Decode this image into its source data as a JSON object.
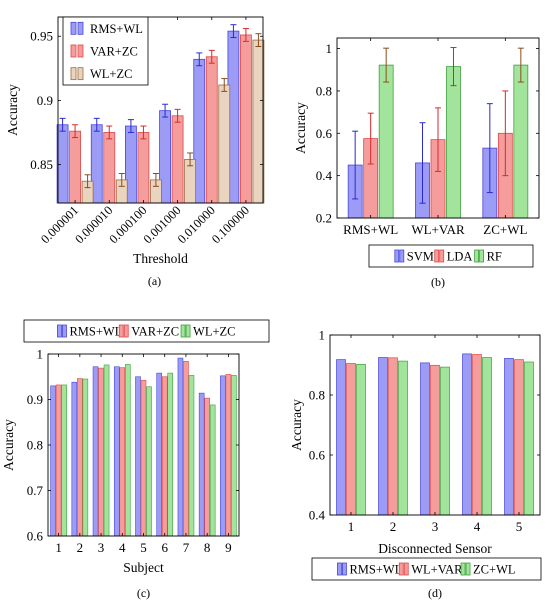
{
  "colors": {
    "blue_fill": "#9c9cf6",
    "blue_edge": "#4747d8",
    "red_fill": "#f59d9d",
    "red_edge": "#e04848",
    "green_fill": "#a3e49c",
    "green_edge": "#3f9f3f",
    "tan_fill": "#e8d4bf",
    "tan_edge": "#a06a3f",
    "error_blue": "#2a2ad6",
    "error_red": "#d62a2a",
    "error_brown": "#8c4d1e",
    "error_tan": "#8c4d1e"
  },
  "chart_data": [
    {
      "type": "bar",
      "panel_label": "(a)",
      "xlabel": "Threshold",
      "ylabel": "Accuracy",
      "ylim": [
        0.82,
        0.965
      ],
      "yticks": [
        0.85,
        0.9,
        0.95
      ],
      "ytick_labels": [
        "0.85",
        "0.9",
        "0.95"
      ],
      "categories": [
        "0.000001",
        "0.000010",
        "0.000100",
        "0.001000",
        "0.010000",
        "0.100000"
      ],
      "legend_position": "top-left",
      "series": [
        {
          "name": "RMS+WL",
          "color": "blue",
          "values": [
            0.881,
            0.881,
            0.88,
            0.892,
            0.932,
            0.954
          ],
          "errors": [
            0.005,
            0.005,
            0.005,
            0.005,
            0.005,
            0.005
          ]
        },
        {
          "name": "VAR+ZC",
          "color": "red",
          "values": [
            0.876,
            0.875,
            0.875,
            0.888,
            0.934,
            0.951
          ],
          "errors": [
            0.005,
            0.005,
            0.005,
            0.005,
            0.005,
            0.005
          ]
        },
        {
          "name": "WL+ZC",
          "color": "tan",
          "values": [
            0.837,
            0.838,
            0.838,
            0.854,
            0.912,
            0.947
          ],
          "errors": [
            0.005,
            0.005,
            0.005,
            0.005,
            0.005,
            0.005
          ]
        }
      ]
    },
    {
      "type": "bar",
      "panel_label": "(b)",
      "xlabel": "",
      "ylabel": "Accuracy",
      "ylim": [
        0.2,
        1.05
      ],
      "yticks": [
        0.2,
        0.4,
        0.6,
        0.8,
        1.0
      ],
      "ytick_labels": [
        "0.2",
        "0.4",
        "0.6",
        "0.8",
        "1"
      ],
      "categories": [
        "RMS+WL",
        "WL+VAR",
        "ZC+WL"
      ],
      "legend_position": "bottom-outside",
      "series": [
        {
          "name": "SVM",
          "color": "blue",
          "values": [
            0.45,
            0.46,
            0.53
          ],
          "errors": [
            0.16,
            0.19,
            0.21
          ]
        },
        {
          "name": "LDA",
          "color": "red",
          "values": [
            0.575,
            0.57,
            0.6
          ],
          "errors": [
            0.12,
            0.15,
            0.2
          ]
        },
        {
          "name": "RF",
          "color": "green",
          "values": [
            0.922,
            0.915,
            0.922
          ],
          "errors": [
            0.08,
            0.09,
            0.08
          ]
        }
      ]
    },
    {
      "type": "bar",
      "panel_label": "(c)",
      "xlabel": "Subject",
      "ylabel": "Accuracy",
      "ylim": [
        0.6,
        1.0
      ],
      "yticks": [
        0.6,
        0.7,
        0.8,
        0.9,
        1.0
      ],
      "ytick_labels": [
        "0.6",
        "0.7",
        "0.8",
        "0.9",
        "1"
      ],
      "categories": [
        "1",
        "2",
        "3",
        "4",
        "5",
        "6",
        "7",
        "8",
        "9"
      ],
      "legend_position": "top-outside",
      "series": [
        {
          "name": "RMS+WL",
          "color": "blue",
          "values": [
            0.93,
            0.938,
            0.972,
            0.972,
            0.95,
            0.958,
            0.991,
            0.914,
            0.952
          ]
        },
        {
          "name": "VAR+ZC",
          "color": "red",
          "values": [
            0.932,
            0.946,
            0.969,
            0.97,
            0.942,
            0.95,
            0.984,
            0.903,
            0.955
          ]
        },
        {
          "name": "WL+ZC",
          "color": "green",
          "values": [
            0.932,
            0.945,
            0.976,
            0.977,
            0.928,
            0.958,
            0.953,
            0.888,
            0.953
          ]
        }
      ]
    },
    {
      "type": "bar",
      "panel_label": "(d)",
      "xlabel": "Disconnected Sensor",
      "ylabel": "Accuracy",
      "ylim": [
        0.4,
        1.0
      ],
      "yticks": [
        0.4,
        0.6,
        0.8,
        1.0
      ],
      "ytick_labels": [
        "0.4",
        "0.6",
        "0.8",
        "1"
      ],
      "categories": [
        "1",
        "2",
        "3",
        "4",
        "5"
      ],
      "legend_position": "bottom-outside",
      "series": [
        {
          "name": "RMS+WL",
          "color": "blue",
          "values": [
            0.918,
            0.925,
            0.907,
            0.937,
            0.922
          ]
        },
        {
          "name": "WL+VAR",
          "color": "red",
          "values": [
            0.905,
            0.924,
            0.899,
            0.935,
            0.918
          ]
        },
        {
          "name": "ZC+WL",
          "color": "green",
          "values": [
            0.902,
            0.913,
            0.893,
            0.925,
            0.91
          ]
        }
      ]
    }
  ]
}
